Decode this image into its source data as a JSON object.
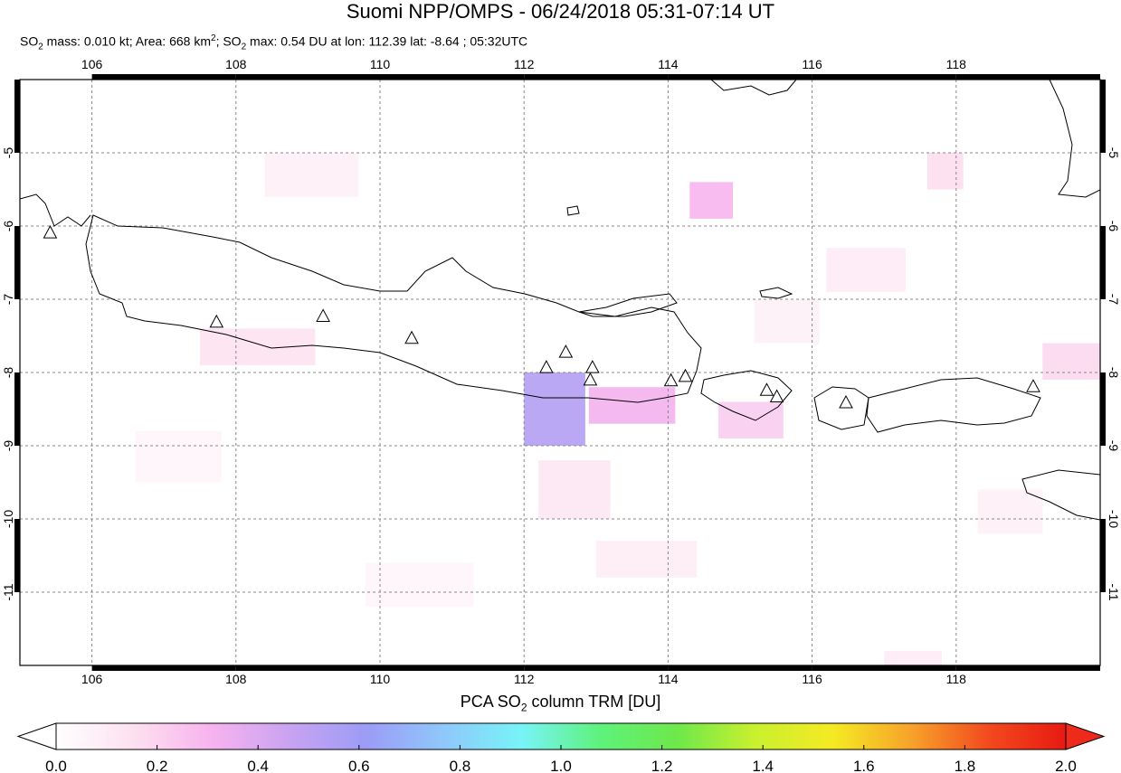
{
  "title": "Suomi NPP/OMPS - 06/24/2018 05:31-07:14 UT",
  "subtitle": {
    "mass_label": "SO",
    "mass_sub": "2",
    "mass_text": " mass: 0.010 kt; Area: 668 km",
    "area_sup": "2",
    "max_label": "; SO",
    "max_sub": "2",
    "max_text": " max: 0.54 DU at lon: 112.39 lat: -8.64 ; 05:32UTC"
  },
  "map": {
    "lon_range": [
      105.0,
      120.0
    ],
    "lat_range": [
      -12.0,
      -4.0
    ],
    "lon_ticks": [
      "106",
      "108",
      "110",
      "112",
      "114",
      "116",
      "118"
    ],
    "lat_ticks": [
      "-5",
      "-6",
      "-7",
      "-8",
      "-9",
      "-10",
      "-11"
    ],
    "grid": true,
    "volcanoes_lonlat": [
      [
        105.42,
        -6.1
      ],
      [
        107.73,
        -7.32
      ],
      [
        109.21,
        -7.24
      ],
      [
        110.44,
        -7.54
      ],
      [
        112.31,
        -7.94
      ],
      [
        112.58,
        -7.73
      ],
      [
        112.95,
        -7.94
      ],
      [
        112.92,
        -8.11
      ],
      [
        114.04,
        -8.12
      ],
      [
        114.24,
        -8.06
      ],
      [
        115.37,
        -8.25
      ],
      [
        115.51,
        -8.34
      ],
      [
        116.47,
        -8.42
      ],
      [
        119.07,
        -8.2
      ]
    ],
    "so2_cells": [
      {
        "lon": 112.0,
        "lat": -8.0,
        "w": 0.85,
        "h": 1.0,
        "value": 0.54
      },
      {
        "lon": 112.9,
        "lat": -8.2,
        "w": 1.2,
        "h": 0.5,
        "value": 0.32
      },
      {
        "lon": 114.3,
        "lat": -5.4,
        "w": 0.6,
        "h": 0.5,
        "value": 0.3
      },
      {
        "lon": 114.7,
        "lat": -8.4,
        "w": 0.9,
        "h": 0.5,
        "value": 0.22
      },
      {
        "lon": 119.2,
        "lat": -7.6,
        "w": 0.8,
        "h": 0.5,
        "value": 0.18
      },
      {
        "lon": 117.6,
        "lat": -5.0,
        "w": 0.5,
        "h": 0.5,
        "value": 0.16
      },
      {
        "lon": 107.5,
        "lat": -7.4,
        "w": 1.6,
        "h": 0.5,
        "value": 0.14
      },
      {
        "lon": 112.2,
        "lat": -9.2,
        "w": 1.0,
        "h": 0.8,
        "value": 0.12
      },
      {
        "lon": 116.2,
        "lat": -6.3,
        "w": 1.1,
        "h": 0.6,
        "value": 0.1
      },
      {
        "lon": 108.4,
        "lat": -5.0,
        "w": 1.3,
        "h": 0.6,
        "value": 0.08
      },
      {
        "lon": 113.0,
        "lat": -10.3,
        "w": 1.4,
        "h": 0.5,
        "value": 0.09
      },
      {
        "lon": 117.0,
        "lat": -11.8,
        "w": 0.8,
        "h": 0.5,
        "value": 0.1
      },
      {
        "lon": 115.2,
        "lat": -7.0,
        "w": 0.9,
        "h": 0.6,
        "value": 0.07
      },
      {
        "lon": 118.3,
        "lat": -9.6,
        "w": 0.9,
        "h": 0.6,
        "value": 0.08
      },
      {
        "lon": 106.6,
        "lat": -8.8,
        "w": 1.2,
        "h": 0.7,
        "value": 0.05
      },
      {
        "lon": 109.8,
        "lat": -10.6,
        "w": 1.5,
        "h": 0.6,
        "value": 0.05
      }
    ]
  },
  "colorbar": {
    "title_prefix": "PCA SO",
    "title_sub": "2",
    "title_suffix": " column TRM [DU]",
    "ticks": [
      "0.0",
      "0.2",
      "0.4",
      "0.6",
      "0.8",
      "1.0",
      "1.2",
      "1.4",
      "1.6",
      "1.8",
      "2.0"
    ],
    "colors": [
      "#ffffff",
      "#fde0f0",
      "#f7b3ee",
      "#c9a3f2",
      "#9c9cf6",
      "#8fc8fb",
      "#77f4f7",
      "#5ef27c",
      "#6ee84a",
      "#c9f02e",
      "#f5ea23",
      "#f7a32a",
      "#f24a1e",
      "#e81a12"
    ],
    "min_arrow_color": "#ffffff",
    "max_arrow_color": "#ee2a1a"
  }
}
